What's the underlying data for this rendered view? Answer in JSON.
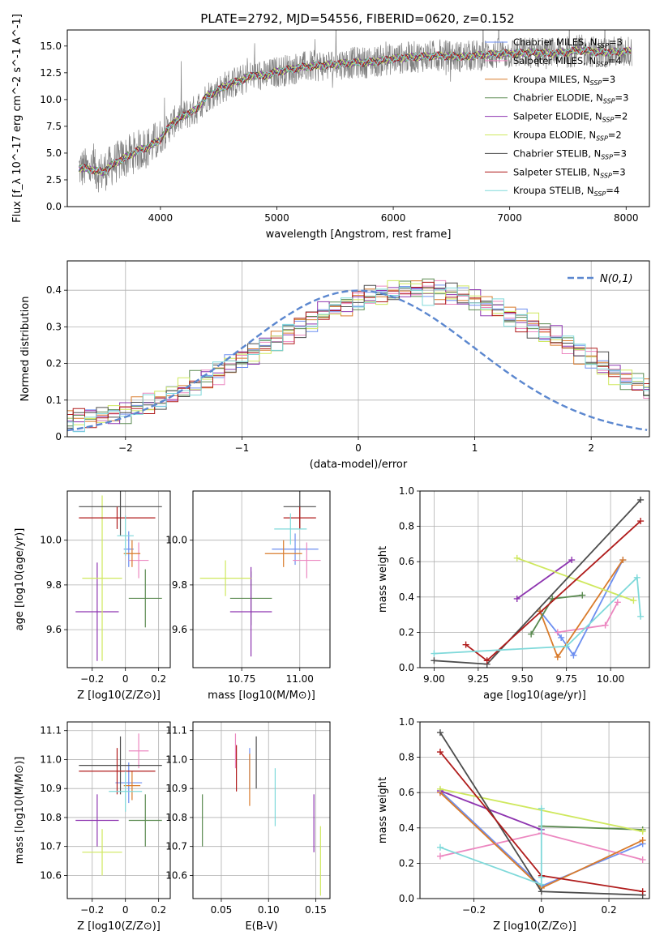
{
  "figure": {
    "title": "PLATE=2792, MJD=54556, FIBERID=0620, z=0.152"
  },
  "chart_data": [
    {
      "id": "spectrum",
      "type": "line",
      "xlabel": "wavelength [Angstrom, rest frame]",
      "ylabel": "Flux [f_λ 10^-17 erg cm^-2 s^-1 A^-1]",
      "xlim": [
        3200,
        8200
      ],
      "ylim": [
        0,
        16.5
      ],
      "xticks": [
        4000,
        5000,
        6000,
        7000,
        8000
      ],
      "yticks": [
        0.0,
        2.5,
        5.0,
        7.5,
        10.0,
        12.5,
        15.0
      ],
      "grid": false,
      "legend_position": "top-right",
      "data_profile": {
        "wavelength": [
          3300,
          3400,
          3500,
          3600,
          3700,
          3800,
          3900,
          4000,
          4100,
          4200,
          4300,
          4400,
          4500,
          4600,
          4700,
          4800,
          4900,
          5000,
          5200,
          5400,
          5600,
          5800,
          6000,
          6200,
          6400,
          6600,
          6800,
          7000,
          7200,
          7400,
          7600,
          7800,
          8000
        ],
        "flux": [
          3.6,
          3.5,
          3.2,
          4.0,
          4.6,
          5.2,
          5.6,
          6.3,
          7.8,
          8.5,
          9.0,
          10.3,
          10.9,
          11.5,
          11.8,
          12.3,
          12.2,
          12.6,
          13.0,
          13.2,
          13.4,
          13.5,
          13.8,
          14.0,
          14.1,
          14.0,
          14.2,
          14.3,
          14.4,
          14.3,
          14.6,
          14.4,
          14.5
        ]
      },
      "series": [
        {
          "label": "Chabrier MILES",
          "nssp": "3",
          "color": "#6d8ff0"
        },
        {
          "label": "Salpeter MILES",
          "nssp": "4",
          "color": "#ec87c0"
        },
        {
          "label": "Kroupa MILES",
          "nssp": "3",
          "color": "#d97b2b"
        },
        {
          "label": "Chabrier ELODIE",
          "nssp": "3",
          "color": "#5a8a50"
        },
        {
          "label": "Salpeter ELODIE",
          "nssp": "2",
          "color": "#8e35b0"
        },
        {
          "label": "Kroupa ELODIE",
          "nssp": "2",
          "color": "#cfe85e"
        },
        {
          "label": "Chabrier STELIB",
          "nssp": "3",
          "color": "#4d4d4d"
        },
        {
          "label": "Salpeter STELIB",
          "nssp": "3",
          "color": "#b01c1c"
        },
        {
          "label": "Kroupa STELIB",
          "nssp": "4",
          "color": "#7fd9da"
        }
      ]
    },
    {
      "id": "residuals",
      "type": "histogram",
      "xlabel": "(data-model)/error",
      "ylabel": "Normed distribution",
      "xlim": [
        -2.5,
        2.5
      ],
      "ylim": [
        0,
        0.48
      ],
      "xticks": [
        -2,
        -1,
        0,
        1,
        2
      ],
      "yticks": [
        0.0,
        0.1,
        0.2,
        0.3,
        0.4
      ],
      "grid": true,
      "legend_position": "top-right",
      "legend_label": "N(0,1)",
      "bin_edges_step": 0.1,
      "base_counts": [
        0.04,
        0.045,
        0.05,
        0.055,
        0.06,
        0.068,
        0.077,
        0.087,
        0.099,
        0.112,
        0.126,
        0.141,
        0.157,
        0.174,
        0.192,
        0.21,
        0.229,
        0.247,
        0.265,
        0.283,
        0.3,
        0.317,
        0.332,
        0.346,
        0.359,
        0.37,
        0.38,
        0.388,
        0.394,
        0.398,
        0.399,
        0.398,
        0.394,
        0.388,
        0.38,
        0.37,
        0.359,
        0.346,
        0.332,
        0.317,
        0.3,
        0.283,
        0.265,
        0.247,
        0.229,
        0.21,
        0.192,
        0.174,
        0.157,
        0.141,
        0.126,
        0.112,
        0.099,
        0.087,
        0.077,
        0.068,
        0.06,
        0.053,
        0.047,
        0.042
      ],
      "perturbations": [
        [
          0.01,
          -0.02,
          0.015,
          -0.01,
          0.02,
          -0.015,
          0.01,
          0.005,
          -0.01,
          0.02
        ],
        [
          -0.015,
          0.01,
          0.02,
          -0.02,
          0.005,
          0.015,
          -0.01,
          0.02,
          -0.005,
          -0.015
        ],
        [
          0.02,
          0.005,
          -0.015,
          0.01,
          -0.02,
          0.01,
          0.02,
          -0.01,
          0.015,
          0.0
        ],
        [
          -0.01,
          0.025,
          -0.005,
          0.015,
          0.01,
          -0.02,
          0.005,
          0.01,
          -0.02,
          0.02
        ],
        [
          0.005,
          -0.01,
          0.025,
          0.0,
          -0.015,
          0.02,
          -0.02,
          0.015,
          0.01,
          -0.01
        ],
        [
          0.025,
          -0.015,
          0.0,
          -0.01,
          0.02,
          0.01,
          -0.015,
          -0.02,
          0.02,
          0.015
        ],
        [
          -0.02,
          0.015,
          0.01,
          0.02,
          -0.01,
          -0.005,
          0.025,
          0.0,
          -0.015,
          0.01
        ],
        [
          0.015,
          0.02,
          -0.02,
          -0.005,
          0.01,
          0.02,
          0.0,
          -0.015,
          0.005,
          -0.02
        ],
        [
          0.0,
          -0.025,
          0.005,
          0.02,
          0.015,
          -0.01,
          -0.01,
          0.02,
          -0.02,
          0.015
        ]
      ]
    },
    {
      "id": "age-vs-z",
      "type": "errorbar",
      "xlabel": "Z [log10(Z/Z⊙)]",
      "ylabel": "age  [log10(age/yr)]",
      "xlim": [
        -0.35,
        0.27
      ],
      "ylim": [
        9.43,
        10.22
      ],
      "xticks": [
        -0.2,
        0.0,
        0.2
      ],
      "yticks": [
        9.6,
        9.8,
        10.0
      ],
      "grid": true,
      "points": [
        {
          "series": 0,
          "x": 0.02,
          "xerr": 0.03,
          "y": 9.96,
          "yerr": 0.08
        },
        {
          "series": 1,
          "x": 0.08,
          "xerr": 0.06,
          "y": 9.91,
          "yerr": 0.08
        },
        {
          "series": 2,
          "x": 0.04,
          "xerr": 0.05,
          "y": 9.94,
          "yerr": 0.06
        },
        {
          "series": 3,
          "x": 0.12,
          "xerr": 0.1,
          "y": 9.74,
          "yerr": 0.13
        },
        {
          "series": 4,
          "x": -0.17,
          "xerr": 0.13,
          "y": 9.68,
          "yerr": 0.22
        },
        {
          "series": 5,
          "x": -0.14,
          "xerr": 0.12,
          "y": 9.83,
          "yerr": 0.37
        },
        {
          "series": 6,
          "x": -0.03,
          "xerr": 0.25,
          "y": 10.15,
          "yerr": 0.13
        },
        {
          "series": 7,
          "x": -0.05,
          "xerr": 0.23,
          "y": 10.1,
          "yerr": 0.05
        },
        {
          "series": 8,
          "x": 0.0,
          "xerr": 0.05,
          "y": 10.02,
          "yerr": 0.09
        }
      ]
    },
    {
      "id": "age-vs-mass",
      "type": "errorbar",
      "xlabel": "mass [log10(M/M⊙)]",
      "ylabel": "",
      "xlim": [
        10.54,
        11.13
      ],
      "ylim": [
        9.43,
        10.22
      ],
      "xticks": [
        10.75,
        11.0
      ],
      "yticks": [
        9.6,
        9.8,
        10.0
      ],
      "grid": true,
      "points": [
        {
          "series": 0,
          "x": 10.98,
          "xerr": 0.1,
          "y": 9.96,
          "yerr": 0.07
        },
        {
          "series": 1,
          "x": 11.03,
          "xerr": 0.06,
          "y": 9.91,
          "yerr": 0.08
        },
        {
          "series": 2,
          "x": 10.93,
          "xerr": 0.08,
          "y": 9.94,
          "yerr": 0.06
        },
        {
          "series": 3,
          "x": 10.79,
          "xerr": 0.09,
          "y": 9.74,
          "yerr": 0.12
        },
        {
          "series": 4,
          "x": 10.79,
          "xerr": 0.09,
          "y": 9.68,
          "yerr": 0.2
        },
        {
          "series": 5,
          "x": 10.68,
          "xerr": 0.11,
          "y": 9.83,
          "yerr": 0.08
        },
        {
          "series": 6,
          "x": 11.0,
          "xerr": 0.07,
          "y": 10.15,
          "yerr": 0.1
        },
        {
          "series": 7,
          "x": 11.0,
          "xerr": 0.07,
          "y": 10.1,
          "yerr": 0.05
        },
        {
          "series": 8,
          "x": 10.96,
          "xerr": 0.07,
          "y": 10.05,
          "yerr": 0.07
        }
      ]
    },
    {
      "id": "weight-vs-age",
      "type": "line",
      "xlabel": "age  [log10(age/yr)]",
      "ylabel": "mass weight",
      "xlim": [
        8.92,
        10.22
      ],
      "ylim": [
        0,
        1.0
      ],
      "xticks": [
        9.0,
        9.25,
        9.5,
        9.75,
        10.0
      ],
      "yticks": [
        0.0,
        0.2,
        0.4,
        0.6,
        0.8,
        1.0
      ],
      "grid": true,
      "lines": [
        {
          "series": 0,
          "x": [
            9.6,
            9.72,
            9.79,
            10.07
          ],
          "y": [
            0.32,
            0.17,
            0.07,
            0.61
          ]
        },
        {
          "series": 1,
          "x": [
            9.7,
            9.97,
            10.04
          ],
          "y": [
            0.2,
            0.24,
            0.37
          ]
        },
        {
          "series": 2,
          "x": [
            9.6,
            9.7,
            10.07
          ],
          "y": [
            0.32,
            0.06,
            0.61
          ]
        },
        {
          "series": 3,
          "x": [
            9.55,
            9.67,
            9.84
          ],
          "y": [
            0.19,
            0.39,
            0.41
          ]
        },
        {
          "series": 4,
          "x": [
            9.47,
            9.78
          ],
          "y": [
            0.39,
            0.61
          ]
        },
        {
          "series": 5,
          "x": [
            9.47,
            10.13
          ],
          "y": [
            0.62,
            0.38
          ]
        },
        {
          "series": 6,
          "x": [
            9.0,
            9.3,
            10.17
          ],
          "y": [
            0.04,
            0.02,
            0.95
          ]
        },
        {
          "series": 7,
          "x": [
            9.18,
            9.3,
            10.17
          ],
          "y": [
            0.13,
            0.04,
            0.83
          ]
        },
        {
          "series": 8,
          "x": [
            9.0,
            9.75,
            10.15,
            10.17
          ],
          "y": [
            0.08,
            0.12,
            0.51,
            0.29
          ]
        }
      ]
    },
    {
      "id": "mass-vs-z",
      "type": "errorbar",
      "xlabel": "Z [log10(Z/Z⊙)]",
      "ylabel": "mass [log10(M/M⊙)]",
      "xlim": [
        -0.35,
        0.27
      ],
      "ylim": [
        10.52,
        11.13
      ],
      "xticks": [
        -0.2,
        0.0,
        0.2
      ],
      "yticks": [
        10.6,
        10.7,
        10.8,
        10.9,
        11.0,
        11.1
      ],
      "grid": true,
      "points": [
        {
          "series": 0,
          "x": 0.02,
          "xerr": 0.08,
          "y": 10.92,
          "yerr": 0.07
        },
        {
          "series": 1,
          "x": 0.08,
          "xerr": 0.06,
          "y": 11.03,
          "yerr": 0.06
        },
        {
          "series": 2,
          "x": 0.04,
          "xerr": 0.05,
          "y": 10.91,
          "yerr": 0.05
        },
        {
          "series": 3,
          "x": 0.12,
          "xerr": 0.1,
          "y": 10.79,
          "yerr": 0.09
        },
        {
          "series": 4,
          "x": -0.17,
          "xerr": 0.13,
          "y": 10.79,
          "yerr": 0.09
        },
        {
          "series": 5,
          "x": -0.14,
          "xerr": 0.12,
          "y": 10.68,
          "yerr": 0.08
        },
        {
          "series": 6,
          "x": -0.03,
          "xerr": 0.25,
          "y": 10.98,
          "yerr": 0.1
        },
        {
          "series": 7,
          "x": -0.05,
          "xerr": 0.23,
          "y": 10.96,
          "yerr": 0.08
        },
        {
          "series": 8,
          "x": 0.0,
          "xerr": 0.1,
          "y": 10.89,
          "yerr": 0.07
        }
      ]
    },
    {
      "id": "mass-vs-ebv",
      "type": "errorbar",
      "xlabel": "E(B-V)",
      "ylabel": "",
      "xlim": [
        0.02,
        0.165
      ],
      "ylim": [
        10.52,
        11.13
      ],
      "xticks": [
        0.05,
        0.1,
        0.15
      ],
      "yticks": [
        10.6,
        10.7,
        10.8,
        10.9,
        11.0,
        11.1
      ],
      "grid": true,
      "points": [
        {
          "series": 0,
          "x": 0.08,
          "xerr": 0,
          "y": 10.97,
          "yerr": 0.07
        },
        {
          "series": 1,
          "x": 0.065,
          "xerr": 0,
          "y": 11.03,
          "yerr": 0.06
        },
        {
          "series": 2,
          "x": 0.08,
          "xerr": 0,
          "y": 10.93,
          "yerr": 0.09
        },
        {
          "series": 3,
          "x": 0.03,
          "xerr": 0,
          "y": 10.79,
          "yerr": 0.09
        },
        {
          "series": 4,
          "x": 0.148,
          "xerr": 0,
          "y": 10.78,
          "yerr": 0.1
        },
        {
          "series": 5,
          "x": 0.155,
          "xerr": 0,
          "y": 10.65,
          "yerr": 0.12
        },
        {
          "series": 6,
          "x": 0.087,
          "xerr": 0,
          "y": 10.99,
          "yerr": 0.09
        },
        {
          "series": 7,
          "x": 0.066,
          "xerr": 0,
          "y": 10.97,
          "yerr": 0.08
        },
        {
          "series": 8,
          "x": 0.107,
          "xerr": 0,
          "y": 10.87,
          "yerr": 0.1
        }
      ]
    },
    {
      "id": "weight-vs-z",
      "type": "line",
      "xlabel": "Z [log10(Z/Z⊙)]",
      "ylabel": "mass weight",
      "xlim": [
        -0.36,
        0.32
      ],
      "ylim": [
        0,
        1.0
      ],
      "xticks": [
        -0.2,
        0.0,
        0.2
      ],
      "yticks": [
        0.0,
        0.2,
        0.4,
        0.6,
        0.8,
        1.0
      ],
      "grid": true,
      "lines": [
        {
          "series": 0,
          "x": [
            -0.3,
            0.0,
            0.3
          ],
          "y": [
            0.61,
            0.07,
            0.31
          ]
        },
        {
          "series": 1,
          "x": [
            -0.3,
            0.0,
            0.3
          ],
          "y": [
            0.24,
            0.37,
            0.22
          ]
        },
        {
          "series": 2,
          "x": [
            -0.3,
            0.0,
            0.3
          ],
          "y": [
            0.6,
            0.06,
            0.33
          ]
        },
        {
          "series": 3,
          "x": [
            0.0,
            0.3
          ],
          "y": [
            0.41,
            0.39
          ]
        },
        {
          "series": 4,
          "x": [
            -0.3,
            0.0
          ],
          "y": [
            0.61,
            0.39
          ]
        },
        {
          "series": 5,
          "x": [
            -0.3,
            0.3
          ],
          "y": [
            0.62,
            0.38
          ]
        },
        {
          "series": 6,
          "x": [
            -0.3,
            0.0,
            0.3
          ],
          "y": [
            0.94,
            0.04,
            0.02
          ]
        },
        {
          "series": 7,
          "x": [
            -0.3,
            0.0,
            0.3
          ],
          "y": [
            0.83,
            0.13,
            0.04
          ]
        },
        {
          "series": 8,
          "x": [
            -0.3,
            0.0,
            0.0,
            0.0
          ],
          "y": [
            0.29,
            0.08,
            0.51,
            0.12
          ]
        }
      ]
    }
  ]
}
